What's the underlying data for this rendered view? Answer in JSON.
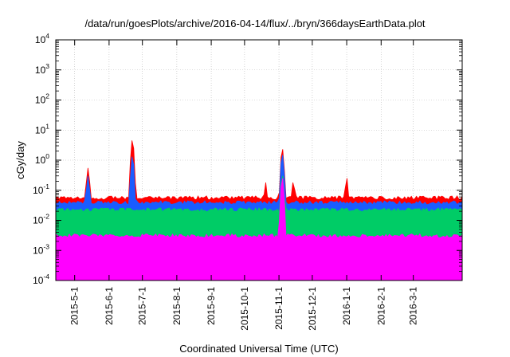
{
  "chart_data": {
    "type": "line",
    "title": "/data/run/goesPlots/archive/2016-04-14/flux/../bryn/366daysEarthData.plot",
    "xlabel": "Coordinated Universal Time (UTC)",
    "ylabel": "cGy/day",
    "y_scale": "log",
    "ylim": [
      0.0001,
      10000
    ],
    "y_ticks": [
      {
        "base": "10",
        "exp": "-4",
        "value": 0.0001
      },
      {
        "base": "10",
        "exp": "-3",
        "value": 0.001
      },
      {
        "base": "10",
        "exp": "-2",
        "value": 0.01
      },
      {
        "base": "10",
        "exp": "-1",
        "value": 0.1
      },
      {
        "base": "10",
        "exp": "0",
        "value": 1
      },
      {
        "base": "10",
        "exp": "1",
        "value": 10
      },
      {
        "base": "10",
        "exp": "2",
        "value": 100
      },
      {
        "base": "10",
        "exp": "3",
        "value": 1000
      },
      {
        "base": "10",
        "exp": "4",
        "value": 10000
      }
    ],
    "xlim": [
      "2015-04-14",
      "2016-04-14"
    ],
    "x_ticks": [
      {
        "label": "2015-5-1",
        "date": "2015-05-01"
      },
      {
        "label": "2015-6-1",
        "date": "2015-06-01"
      },
      {
        "label": "2015-7-1",
        "date": "2015-07-01"
      },
      {
        "label": "2015-8-1",
        "date": "2015-08-01"
      },
      {
        "label": "2015-9-1",
        "date": "2015-09-01"
      },
      {
        "label": "2015-10-1",
        "date": "2015-10-01"
      },
      {
        "label": "2015-11-1",
        "date": "2015-11-01"
      },
      {
        "label": "2015-12-1",
        "date": "2015-12-01"
      },
      {
        "label": "2016-1-1",
        "date": "2016-01-01"
      },
      {
        "label": "2016-2-1",
        "date": "2016-02-01"
      },
      {
        "label": "2016-3-1",
        "date": "2016-03-01"
      }
    ],
    "grid": true,
    "legend": "none",
    "series": [
      {
        "color": "#ff0000",
        "baseline": 0.055,
        "peaks": [
          {
            "date": "2015-05-13",
            "value": 0.55
          },
          {
            "date": "2015-06-22",
            "value": 4.5
          },
          {
            "date": "2015-10-20",
            "value": 0.18
          },
          {
            "date": "2015-11-04",
            "value": 2.3
          },
          {
            "date": "2015-11-14",
            "value": 0.18
          },
          {
            "date": "2016-01-01",
            "value": 0.25
          }
        ]
      },
      {
        "color": "#1a5cff",
        "baseline": 0.038,
        "peaks": [
          {
            "date": "2015-05-13",
            "value": 0.3
          },
          {
            "date": "2015-06-22",
            "value": 1.3
          },
          {
            "date": "2015-11-04",
            "value": 1.5
          }
        ]
      },
      {
        "color": "#00cc66",
        "baseline": 0.022,
        "peaks": [
          {
            "date": "2015-11-04",
            "value": 0.3
          }
        ]
      },
      {
        "color": "#ff00ff",
        "baseline": 0.003,
        "peaks": [
          {
            "date": "2015-11-04",
            "value": 0.25
          }
        ]
      }
    ]
  }
}
